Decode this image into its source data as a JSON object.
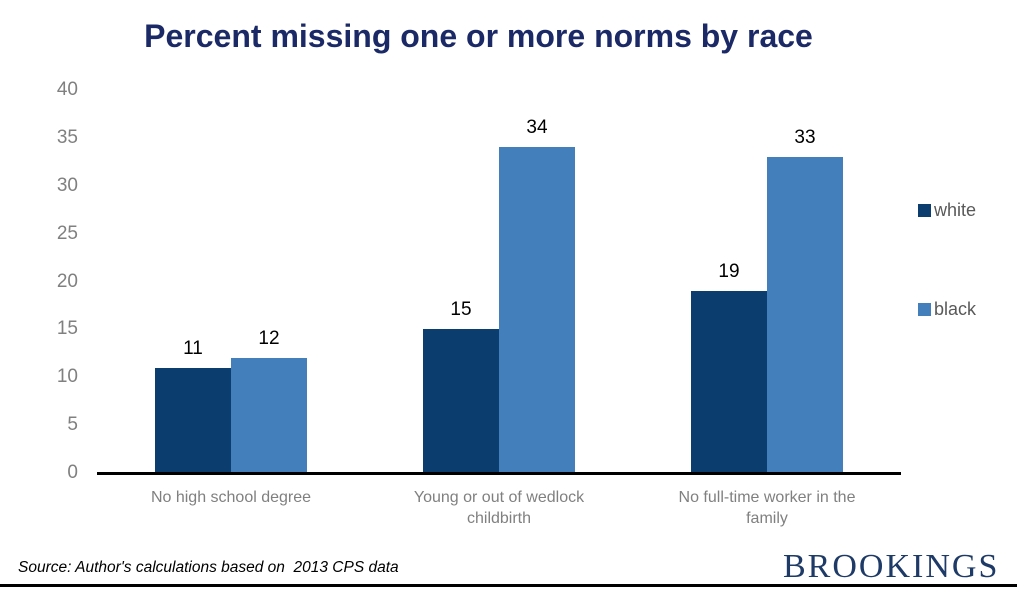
{
  "chart_data": {
    "type": "bar",
    "title": "Percent missing one or more norms by race",
    "categories": [
      "No high school degree",
      "Young or out of wedlock\nchildbirth",
      "No full-time worker in the\nfamily"
    ],
    "series": [
      {
        "name": "white",
        "color": "#0b3d6f",
        "values": [
          11,
          15,
          19
        ]
      },
      {
        "name": "black",
        "color": "#4380bb",
        "values": [
          12,
          34,
          33
        ]
      }
    ],
    "ylim": [
      0,
      40
    ],
    "yticks": [
      0,
      5,
      10,
      15,
      20,
      25,
      30,
      35,
      40
    ],
    "grid": false,
    "legend_position": "right",
    "value_labels": true,
    "xlabel": "",
    "ylabel": ""
  },
  "colors": {
    "title": "#1b2a66",
    "axis_tick_label": "#808080",
    "category_label": "#808080",
    "legend_text": "#595959",
    "logo": "#1e3a67"
  },
  "footer": {
    "source": "Source: Author's calculations based on  2013 CPS data",
    "logo": "BROOKINGS"
  }
}
